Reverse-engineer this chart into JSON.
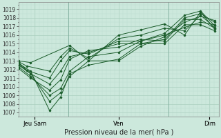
{
  "title": "",
  "xlabel": "Pression niveau de la mer( hPa )",
  "ylabel": "",
  "bg_color": "#cce8dc",
  "grid_major_color": "#aacfbf",
  "grid_minor_color": "#bcddd0",
  "line_color": "#1a5c2a",
  "ylim": [
    1006.5,
    1019.8
  ],
  "yticks": [
    1007,
    1008,
    1009,
    1010,
    1011,
    1012,
    1013,
    1014,
    1015,
    1016,
    1017,
    1018,
    1019
  ],
  "day_ticks": [
    0.08,
    0.5,
    0.955
  ],
  "day_labels": [
    "Jeu Sam",
    "Ven",
    "Dim"
  ],
  "vlines": [
    0.25,
    0.75
  ],
  "xlim": [
    0,
    1
  ],
  "lines": [
    [
      0.0,
      1012.7,
      0.06,
      1011.8,
      0.155,
      1007.2,
      0.21,
      1008.8,
      0.255,
      1011.5,
      0.35,
      1012.5,
      0.5,
      1013.2,
      0.61,
      1015.0,
      0.73,
      1015.5,
      0.83,
      1018.0,
      0.91,
      1018.5,
      0.98,
      1017.5
    ],
    [
      0.0,
      1012.5,
      0.06,
      1011.5,
      0.155,
      1008.3,
      0.21,
      1009.3,
      0.255,
      1011.2,
      0.35,
      1013.0,
      0.5,
      1013.0,
      0.61,
      1014.7,
      0.73,
      1015.8,
      0.83,
      1017.5,
      0.91,
      1018.2,
      0.98,
      1017.7
    ],
    [
      0.0,
      1012.3,
      0.06,
      1011.2,
      0.155,
      1009.0,
      0.21,
      1009.8,
      0.255,
      1011.8,
      0.35,
      1013.5,
      0.5,
      1014.0,
      0.61,
      1015.3,
      0.73,
      1016.2,
      0.83,
      1018.3,
      0.91,
      1018.8,
      0.98,
      1017.1
    ],
    [
      0.0,
      1012.1,
      0.06,
      1011.0,
      0.155,
      1009.6,
      0.21,
      1010.8,
      0.255,
      1013.2,
      0.35,
      1014.2,
      0.5,
      1014.6,
      0.61,
      1015.5,
      0.73,
      1015.3,
      0.83,
      1017.8,
      0.91,
      1017.8,
      0.98,
      1016.8
    ],
    [
      0.0,
      1012.8,
      0.06,
      1011.5,
      0.155,
      1010.3,
      0.21,
      1011.8,
      0.255,
      1013.5,
      0.35,
      1014.0,
      0.5,
      1015.0,
      0.61,
      1015.0,
      0.73,
      1015.0,
      0.83,
      1017.2,
      0.91,
      1017.2,
      0.98,
      1016.5
    ],
    [
      0.0,
      1012.6,
      0.04,
      1011.9,
      0.155,
      1011.0,
      0.21,
      1013.0,
      0.255,
      1014.2,
      0.35,
      1013.8,
      0.5,
      1015.3,
      0.61,
      1015.3,
      0.73,
      1016.0,
      0.83,
      1016.9,
      0.91,
      1017.5,
      0.98,
      1017.2
    ],
    [
      0.0,
      1012.9,
      0.04,
      1012.4,
      0.155,
      1011.8,
      0.21,
      1013.5,
      0.255,
      1014.5,
      0.35,
      1013.3,
      0.5,
      1015.6,
      0.61,
      1016.0,
      0.73,
      1016.8,
      0.83,
      1016.5,
      0.91,
      1018.3,
      0.98,
      1016.9
    ],
    [
      0.0,
      1013.0,
      0.06,
      1012.8,
      0.255,
      1014.8,
      0.35,
      1013.0,
      0.5,
      1016.0,
      0.61,
      1016.6,
      0.73,
      1017.3,
      0.83,
      1016.0,
      0.91,
      1018.7,
      0.98,
      1016.7
    ]
  ]
}
